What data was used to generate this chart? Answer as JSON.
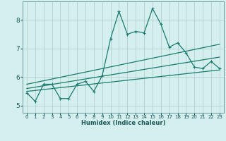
{
  "xlabel": "Humidex (Indice chaleur)",
  "bg_color": "#d4efee",
  "grid_color": "#b0d0ce",
  "line_color": "#1a7a6e",
  "x": [
    0,
    1,
    2,
    3,
    4,
    5,
    6,
    7,
    8,
    9,
    10,
    11,
    12,
    13,
    14,
    15,
    16,
    17,
    18,
    19,
    20,
    21,
    22,
    23
  ],
  "y_main": [
    5.45,
    5.15,
    5.75,
    5.75,
    5.25,
    5.25,
    5.75,
    5.85,
    5.5,
    6.05,
    7.35,
    8.3,
    7.5,
    7.6,
    7.55,
    8.4,
    7.85,
    7.05,
    7.2,
    6.85,
    6.35,
    6.3,
    6.55,
    6.3
  ],
  "ylim": [
    4.75,
    8.65
  ],
  "xlim": [
    -0.5,
    23.5
  ],
  "yticks": [
    5,
    6,
    7,
    8
  ],
  "xtick_labels": [
    "0",
    "1",
    "2",
    "3",
    "4",
    "5",
    "6",
    "7",
    "8",
    "9",
    "10",
    "11",
    "12",
    "13",
    "14",
    "15",
    "16",
    "17",
    "18",
    "19",
    "20",
    "21",
    "22",
    "23"
  ],
  "reg_lines": [
    [
      5.5,
      6.25
    ],
    [
      5.6,
      6.7
    ],
    [
      5.75,
      7.15
    ]
  ]
}
